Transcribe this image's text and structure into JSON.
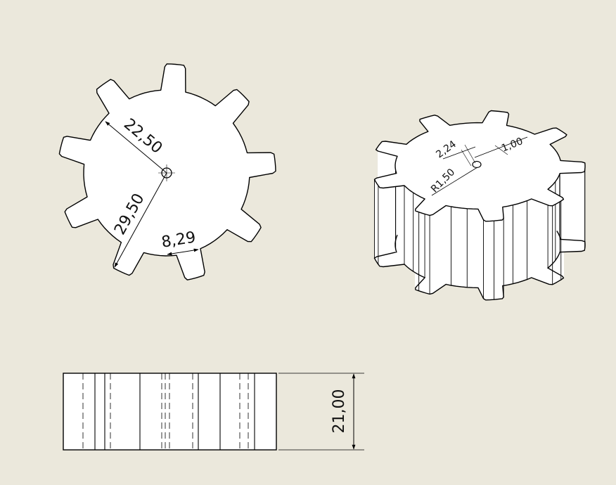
{
  "colors": {
    "sheet": "#ebe8dc",
    "part_fill": "#ffffff",
    "line": "#000000"
  },
  "front_view": {
    "dim_inner_radius": "22,50",
    "dim_outer_radius": "29,50",
    "dim_tooth_width": "8,29"
  },
  "iso_view": {
    "dim_hole": "2,24",
    "dim_offset": "1,00",
    "dim_radius": "R1,50"
  },
  "side_view": {
    "dim_height": "21,00"
  }
}
